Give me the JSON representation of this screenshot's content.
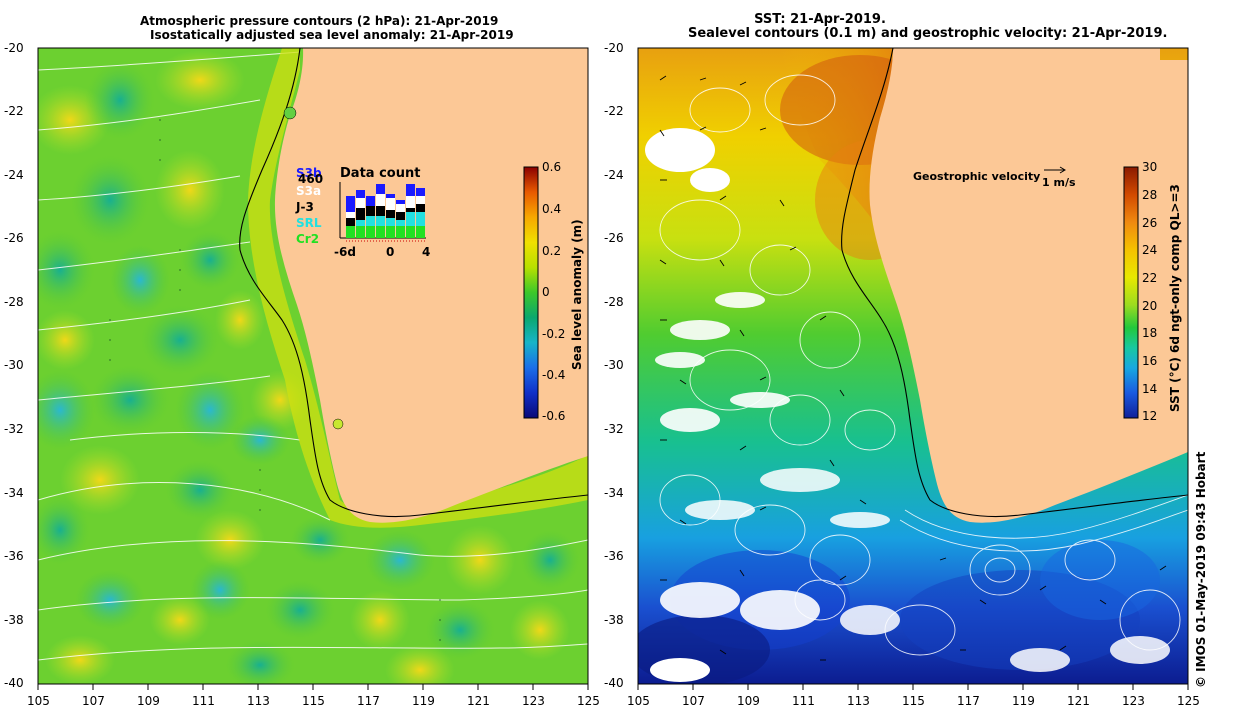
{
  "left_panel": {
    "title_line1": "Atmospheric pressure contours (2 hPa): 21-Apr-2019",
    "title_line2": "Isostatically adjusted sea level anomaly: 21-Apr-2019",
    "colorbar": {
      "label": "Sea level anomaly (m)",
      "ticks": [
        "0.6",
        "0.4",
        "0.2",
        "0",
        "-0.2",
        "-0.4",
        "-0.6"
      ],
      "colors": [
        "#8b0000",
        "#e85a00",
        "#f7a800",
        "#f0e000",
        "#b8e000",
        "#3cc82a",
        "#0aa86e",
        "#18b4c8",
        "#1a6ee8",
        "#1030c8",
        "#0a0a78"
      ]
    },
    "data_count": {
      "title": "Data count",
      "satellites": [
        {
          "name": "S3b",
          "color": "#1a1aff"
        },
        {
          "name": "460",
          "color": "#000000"
        },
        {
          "name": "S3a",
          "color": "#ffffff"
        },
        {
          "name": "J-3",
          "color": "#000000"
        },
        {
          "name": "SRL",
          "color": "#22e0e0"
        },
        {
          "name": "Cr2",
          "color": "#22e022"
        }
      ],
      "x_labels": [
        "-6d",
        "0",
        "4"
      ]
    }
  },
  "right_panel": {
    "title_line1": "SST: 21-Apr-2019.",
    "title_line2": "Sealevel contours (0.1 m) and geostrophic velocity: 21-Apr-2019.",
    "velocity_label": "Geostrophic velocity",
    "velocity_scale": "1 m/s",
    "colorbar": {
      "label": "SST (°C) 6d ngt-only comp QL>=3",
      "ticks": [
        "30",
        "28",
        "26",
        "24",
        "22",
        "20",
        "18",
        "16",
        "14",
        "12"
      ],
      "colors": [
        "#8b1a00",
        "#d24a00",
        "#f08a10",
        "#f5c200",
        "#e8e800",
        "#9cdc20",
        "#22c83c",
        "#18c8a0",
        "#18a8e0",
        "#1a5ae0",
        "#10209a"
      ]
    }
  },
  "x_ticks": [
    "105",
    "107",
    "109",
    "111",
    "113",
    "115",
    "117",
    "119",
    "121",
    "123",
    "125"
  ],
  "y_ticks": [
    "-20",
    "-22",
    "-24",
    "-26",
    "-28",
    "-30",
    "-32",
    "-34",
    "-36",
    "-38",
    "-40"
  ],
  "credit": "© IMOS 01-May-2019 09:43 Hobart",
  "colors": {
    "land": "#fcc896",
    "frame": "#000000",
    "contour": "#ffffff"
  }
}
